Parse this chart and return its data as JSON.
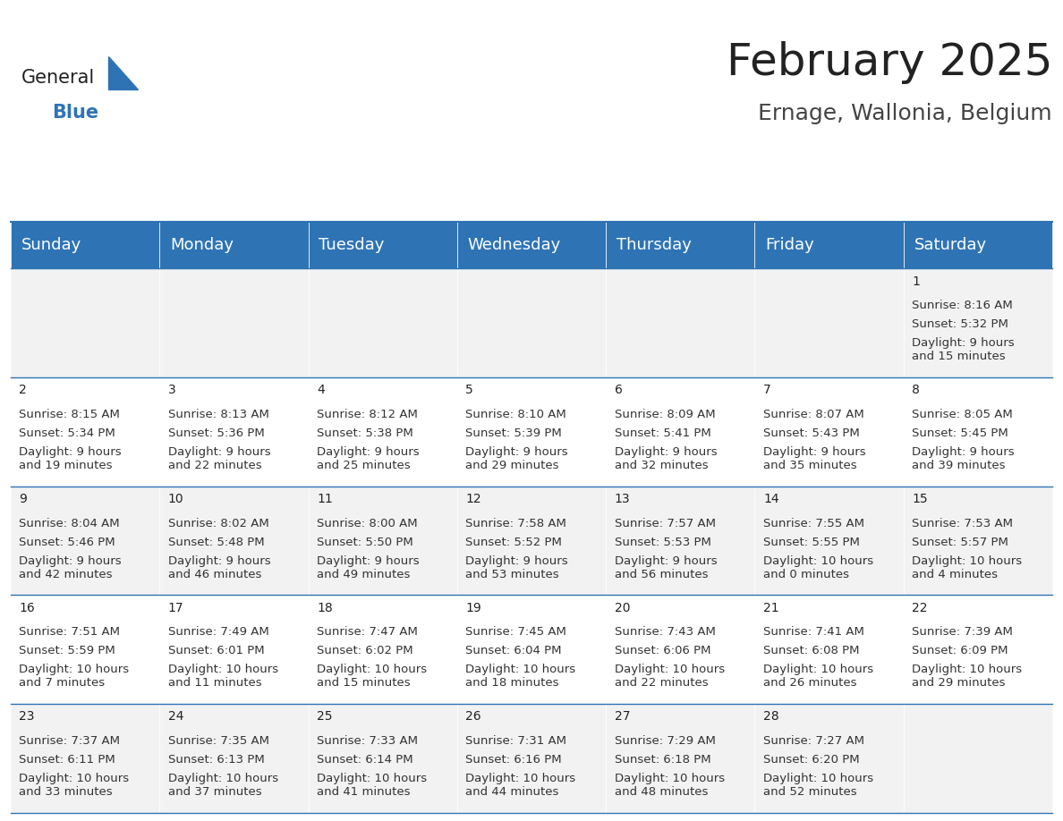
{
  "title": "February 2025",
  "subtitle": "Ernage, Wallonia, Belgium",
  "header_color": "#2E74B5",
  "header_text_color": "#FFFFFF",
  "bg_color": "#FFFFFF",
  "cell_bg_even": "#F2F2F2",
  "cell_bg_odd": "#FFFFFF",
  "border_color": "#2E74B5",
  "day_names": [
    "Sunday",
    "Monday",
    "Tuesday",
    "Wednesday",
    "Thursday",
    "Friday",
    "Saturday"
  ],
  "title_fontsize": 36,
  "subtitle_fontsize": 18,
  "day_header_fontsize": 13,
  "cell_fontsize": 9.5,
  "days": [
    {
      "day": 1,
      "col": 6,
      "row": 0,
      "sunrise": "8:16 AM",
      "sunset": "5:32 PM",
      "daylight": "9 hours and 15 minutes"
    },
    {
      "day": 2,
      "col": 0,
      "row": 1,
      "sunrise": "8:15 AM",
      "sunset": "5:34 PM",
      "daylight": "9 hours and 19 minutes"
    },
    {
      "day": 3,
      "col": 1,
      "row": 1,
      "sunrise": "8:13 AM",
      "sunset": "5:36 PM",
      "daylight": "9 hours and 22 minutes"
    },
    {
      "day": 4,
      "col": 2,
      "row": 1,
      "sunrise": "8:12 AM",
      "sunset": "5:38 PM",
      "daylight": "9 hours and 25 minutes"
    },
    {
      "day": 5,
      "col": 3,
      "row": 1,
      "sunrise": "8:10 AM",
      "sunset": "5:39 PM",
      "daylight": "9 hours and 29 minutes"
    },
    {
      "day": 6,
      "col": 4,
      "row": 1,
      "sunrise": "8:09 AM",
      "sunset": "5:41 PM",
      "daylight": "9 hours and 32 minutes"
    },
    {
      "day": 7,
      "col": 5,
      "row": 1,
      "sunrise": "8:07 AM",
      "sunset": "5:43 PM",
      "daylight": "9 hours and 35 minutes"
    },
    {
      "day": 8,
      "col": 6,
      "row": 1,
      "sunrise": "8:05 AM",
      "sunset": "5:45 PM",
      "daylight": "9 hours and 39 minutes"
    },
    {
      "day": 9,
      "col": 0,
      "row": 2,
      "sunrise": "8:04 AM",
      "sunset": "5:46 PM",
      "daylight": "9 hours and 42 minutes"
    },
    {
      "day": 10,
      "col": 1,
      "row": 2,
      "sunrise": "8:02 AM",
      "sunset": "5:48 PM",
      "daylight": "9 hours and 46 minutes"
    },
    {
      "day": 11,
      "col": 2,
      "row": 2,
      "sunrise": "8:00 AM",
      "sunset": "5:50 PM",
      "daylight": "9 hours and 49 minutes"
    },
    {
      "day": 12,
      "col": 3,
      "row": 2,
      "sunrise": "7:58 AM",
      "sunset": "5:52 PM",
      "daylight": "9 hours and 53 minutes"
    },
    {
      "day": 13,
      "col": 4,
      "row": 2,
      "sunrise": "7:57 AM",
      "sunset": "5:53 PM",
      "daylight": "9 hours and 56 minutes"
    },
    {
      "day": 14,
      "col": 5,
      "row": 2,
      "sunrise": "7:55 AM",
      "sunset": "5:55 PM",
      "daylight": "10 hours and 0 minutes"
    },
    {
      "day": 15,
      "col": 6,
      "row": 2,
      "sunrise": "7:53 AM",
      "sunset": "5:57 PM",
      "daylight": "10 hours and 4 minutes"
    },
    {
      "day": 16,
      "col": 0,
      "row": 3,
      "sunrise": "7:51 AM",
      "sunset": "5:59 PM",
      "daylight": "10 hours and 7 minutes"
    },
    {
      "day": 17,
      "col": 1,
      "row": 3,
      "sunrise": "7:49 AM",
      "sunset": "6:01 PM",
      "daylight": "10 hours and 11 minutes"
    },
    {
      "day": 18,
      "col": 2,
      "row": 3,
      "sunrise": "7:47 AM",
      "sunset": "6:02 PM",
      "daylight": "10 hours and 15 minutes"
    },
    {
      "day": 19,
      "col": 3,
      "row": 3,
      "sunrise": "7:45 AM",
      "sunset": "6:04 PM",
      "daylight": "10 hours and 18 minutes"
    },
    {
      "day": 20,
      "col": 4,
      "row": 3,
      "sunrise": "7:43 AM",
      "sunset": "6:06 PM",
      "daylight": "10 hours and 22 minutes"
    },
    {
      "day": 21,
      "col": 5,
      "row": 3,
      "sunrise": "7:41 AM",
      "sunset": "6:08 PM",
      "daylight": "10 hours and 26 minutes"
    },
    {
      "day": 22,
      "col": 6,
      "row": 3,
      "sunrise": "7:39 AM",
      "sunset": "6:09 PM",
      "daylight": "10 hours and 29 minutes"
    },
    {
      "day": 23,
      "col": 0,
      "row": 4,
      "sunrise": "7:37 AM",
      "sunset": "6:11 PM",
      "daylight": "10 hours and 33 minutes"
    },
    {
      "day": 24,
      "col": 1,
      "row": 4,
      "sunrise": "7:35 AM",
      "sunset": "6:13 PM",
      "daylight": "10 hours and 37 minutes"
    },
    {
      "day": 25,
      "col": 2,
      "row": 4,
      "sunrise": "7:33 AM",
      "sunset": "6:14 PM",
      "daylight": "10 hours and 41 minutes"
    },
    {
      "day": 26,
      "col": 3,
      "row": 4,
      "sunrise": "7:31 AM",
      "sunset": "6:16 PM",
      "daylight": "10 hours and 44 minutes"
    },
    {
      "day": 27,
      "col": 4,
      "row": 4,
      "sunrise": "7:29 AM",
      "sunset": "6:18 PM",
      "daylight": "10 hours and 48 minutes"
    },
    {
      "day": 28,
      "col": 5,
      "row": 4,
      "sunrise": "7:27 AM",
      "sunset": "6:20 PM",
      "daylight": "10 hours and 52 minutes"
    }
  ]
}
